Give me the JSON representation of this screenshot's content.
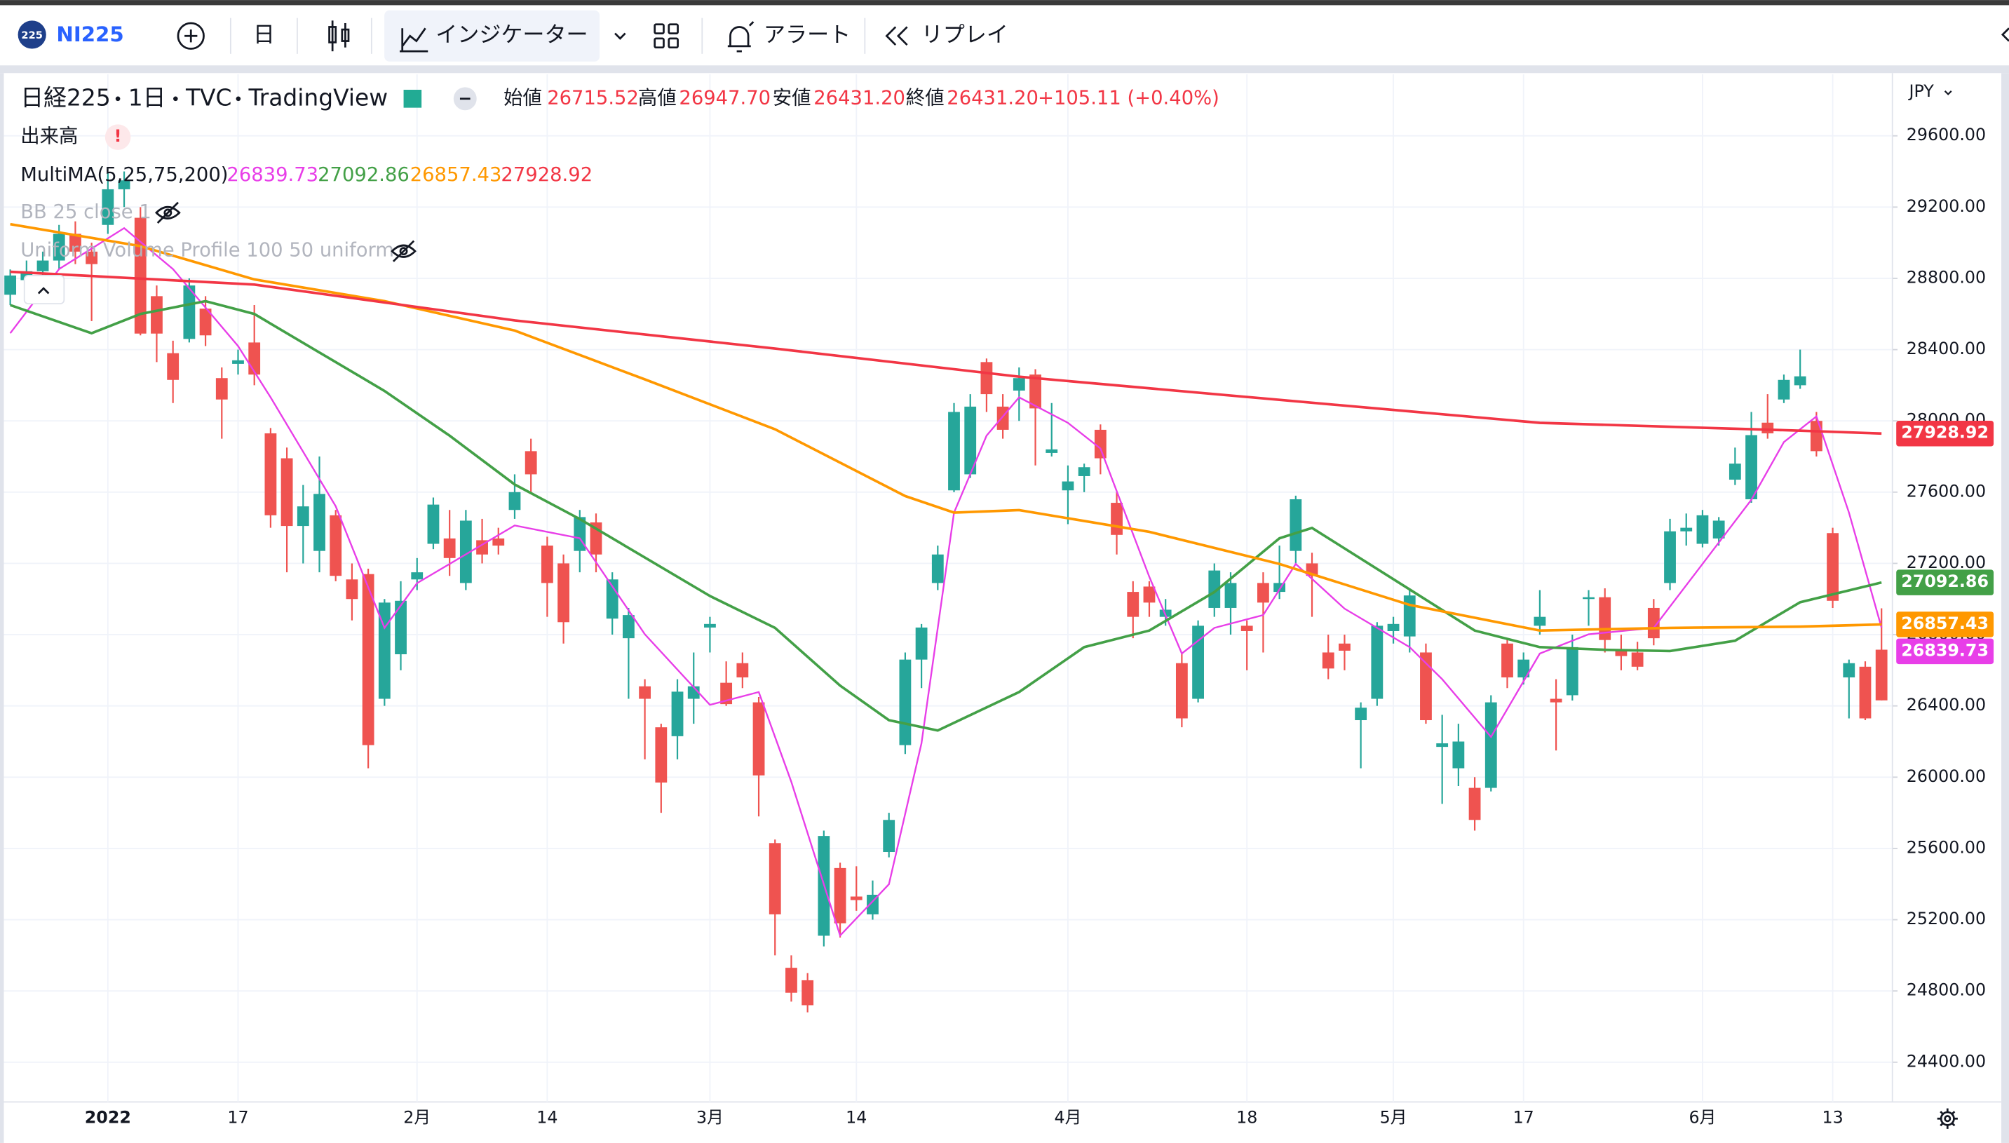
{
  "toolbar": {
    "symbol_badge": "225",
    "symbol": "NI225",
    "interval": "日",
    "indicators": "インジケーター",
    "alert": "アラート",
    "replay": "リプレイ"
  },
  "legend": {
    "title": "日経225",
    "interval": "1日",
    "source": "TVC",
    "vendor": "TradingView",
    "ohlc": [
      {
        "name": "始値",
        "value": "26715.52"
      },
      {
        "name": "高値",
        "value": "26947.70"
      },
      {
        "name": "安値",
        "value": "26431.20"
      },
      {
        "name": "終値",
        "value": "26431.20"
      }
    ],
    "change": "+105.11 (+0.40%)",
    "volume": "出来高",
    "multima": "MultiMA(5,25,75,200)",
    "bb": "BB 25 close 1",
    "vp": "Uniform Volume Profile 100 50 uniform"
  },
  "currency": "JPY",
  "chart_data": {
    "type": "candlestick",
    "categories": [
      null,
      null,
      null,
      null,
      null,
      null,
      "2022",
      null,
      null,
      null,
      null,
      null,
      null,
      null,
      "17",
      null,
      null,
      null,
      null,
      null,
      null,
      null,
      null,
      null,
      null,
      "2月",
      null,
      null,
      null,
      null,
      null,
      null,
      null,
      "14",
      null,
      null,
      null,
      null,
      null,
      null,
      null,
      null,
      null,
      "3月",
      null,
      null,
      null,
      null,
      null,
      null,
      null,
      null,
      "14",
      null,
      null,
      null,
      null,
      null,
      null,
      null,
      null,
      null,
      null,
      null,
      null,
      "4月",
      null,
      null,
      null,
      null,
      null,
      null,
      null,
      null,
      null,
      null,
      "18",
      null,
      null,
      null,
      null,
      null,
      null,
      null,
      null,
      "5月",
      null,
      null,
      null,
      null,
      null,
      null,
      null,
      "17",
      null,
      null,
      null,
      null,
      null,
      null,
      null,
      null,
      null,
      null,
      "6月",
      null,
      null,
      null,
      null,
      null,
      null,
      null,
      "13",
      null,
      null,
      null
    ],
    "open": [
      28708,
      28790,
      28840,
      28900,
      29050,
      28950,
      29100,
      29300,
      29140,
      28700,
      28380,
      28460,
      28630,
      28240,
      28320,
      28440,
      27930,
      27790,
      27410,
      27270,
      27470,
      27110,
      27140,
      26440,
      26690,
      27110,
      27310,
      27340,
      27090,
      27330,
      27340,
      27500,
      27830,
      27300,
      27200,
      27270,
      27430,
      26890,
      26780,
      26510,
      26280,
      26230,
      26440,
      26840,
      26530,
      26640,
      26420,
      25630,
      24930,
      24860,
      25110,
      25490,
      25330,
      25230,
      25580,
      26180,
      26660,
      27090,
      27610,
      27700,
      28330,
      28080,
      28170,
      28260,
      27820,
      27610,
      27690,
      27950,
      27540,
      27040,
      27070,
      26900,
      26640,
      26440,
      26950,
      26950,
      26850,
      27090,
      27040,
      27270,
      27200,
      26700,
      26750,
      26320,
      26440,
      26820,
      26790,
      26700,
      26170,
      26050,
      25940,
      25940,
      26750,
      26560,
      26850,
      26440,
      26460,
      27000,
      27010,
      26710,
      26700,
      26950,
      27090,
      27380,
      27310,
      27340,
      27670,
      27560,
      27990,
      28120,
      28200,
      28000,
      27370,
      26560,
      26620,
      26715.52
    ],
    "high": [
      28850,
      28900,
      28950,
      29100,
      29120,
      29000,
      29390,
      29400,
      29200,
      28760,
      28450,
      28800,
      28700,
      28300,
      28400,
      28650,
      27960,
      27850,
      27640,
      27800,
      27500,
      27200,
      27170,
      27000,
      27100,
      27230,
      27570,
      27500,
      27500,
      27450,
      27400,
      27700,
      27900,
      27350,
      27250,
      27500,
      27480,
      27150,
      26950,
      26550,
      26300,
      26550,
      26700,
      26900,
      26650,
      26700,
      26450,
      25650,
      25000,
      24900,
      25700,
      25520,
      25500,
      25420,
      25800,
      26700,
      26860,
      27300,
      28100,
      28150,
      28350,
      28150,
      28300,
      28290,
      28100,
      27750,
      27760,
      27980,
      27600,
      27100,
      27100,
      27000,
      26700,
      26880,
      27200,
      27150,
      26880,
      27150,
      27300,
      27580,
      27260,
      26800,
      26800,
      26420,
      26870,
      26900,
      27050,
      26750,
      26350,
      26300,
      26000,
      26460,
      26780,
      26700,
      27050,
      26550,
      26800,
      27050,
      27060,
      26800,
      26760,
      27000,
      27450,
      27480,
      27500,
      27460,
      27850,
      28050,
      28150,
      28260,
      28400,
      28050,
      27400,
      26660,
      26650,
      26947.7
    ],
    "low": [
      28650,
      28720,
      28780,
      28850,
      28880,
      28560,
      29050,
      29200,
      28480,
      28330,
      28100,
      28440,
      28420,
      27900,
      28260,
      28200,
      27400,
      27150,
      27200,
      27150,
      27100,
      26880,
      26050,
      26400,
      26600,
      27050,
      27280,
      27130,
      27050,
      27200,
      27250,
      27450,
      27600,
      26900,
      26750,
      27150,
      27150,
      26800,
      26440,
      26100,
      25800,
      26100,
      26300,
      26700,
      26400,
      26500,
      25780,
      25000,
      24740,
      24680,
      25050,
      25100,
      25250,
      25200,
      25550,
      26130,
      26500,
      27050,
      27600,
      27680,
      28050,
      27900,
      28000,
      27750,
      27800,
      27420,
      27600,
      27700,
      27250,
      26780,
      26900,
      26850,
      26280,
      26420,
      26900,
      26800,
      26600,
      26700,
      27000,
      27200,
      26900,
      26550,
      26600,
      26050,
      26400,
      26750,
      26700,
      26300,
      25850,
      25950,
      25700,
      25920,
      26500,
      26520,
      26800,
      26150,
      26430,
      26850,
      26700,
      26600,
      26600,
      26740,
      27050,
      27300,
      27290,
      27300,
      27640,
      27540,
      27900,
      28100,
      28180,
      27800,
      26950,
      26330,
      26320,
      26431.2
    ],
    "close": [
      28816,
      28840,
      28900,
      29050,
      28950,
      28880,
      29300,
      29350,
      28490,
      28490,
      28230,
      28760,
      28480,
      28120,
      28340,
      28260,
      27470,
      27410,
      27520,
      27590,
      27130,
      27000,
      26180,
      26980,
      26990,
      27150,
      27530,
      27230,
      27440,
      27250,
      27300,
      27600,
      27700,
      27090,
      26870,
      27460,
      27250,
      27110,
      26910,
      26440,
      25970,
      26480,
      26510,
      26860,
      26410,
      26560,
      26010,
      25230,
      24790,
      24720,
      25670,
      25180,
      25310,
      25340,
      25760,
      26660,
      26840,
      27250,
      28050,
      28080,
      28150,
      27950,
      28240,
      28070,
      27840,
      27660,
      27740,
      27790,
      27360,
      26900,
      26980,
      26940,
      26330,
      26850,
      27160,
      27090,
      26820,
      26980,
      27090,
      27560,
      27130,
      26610,
      26710,
      26390,
      26850,
      26860,
      27020,
      26320,
      26190,
      26200,
      25760,
      26420,
      26560,
      26660,
      26900,
      26420,
      26730,
      27010,
      26770,
      26680,
      26620,
      26780,
      27380,
      27400,
      27470,
      27440,
      27760,
      27920,
      27930,
      28230,
      28250,
      27830,
      26990,
      26640,
      26330,
      26431.2
    ],
    "up_color": "#26a69a",
    "down_color": "#ef5350",
    "series": [
      {
        "color": "#e83ee8",
        "x": [
          0,
          3,
          7,
          10,
          14,
          16,
          20,
          23,
          25,
          31,
          35,
          39,
          43,
          46,
          48,
          51,
          54,
          56,
          58,
          60,
          62,
          65,
          67,
          70,
          72,
          74,
          77,
          79,
          82,
          86,
          88,
          91,
          94,
          97,
          101,
          104,
          107,
          109,
          111,
          113,
          115
        ],
        "values": [
          28492,
          28852,
          29082,
          28852,
          28420,
          28132,
          27521,
          26838,
          27089,
          27413,
          27341,
          26802,
          26406,
          26478,
          25974,
          25111,
          25399,
          26190,
          27485,
          27917,
          28132,
          27989,
          27845,
          27125,
          26694,
          26838,
          26910,
          27197,
          26946,
          26730,
          26550,
          26226,
          26694,
          26802,
          26838,
          27197,
          27557,
          27881,
          28025,
          27485,
          26839.73
        ]
      },
      {
        "color": "#43a047",
        "x": [
          0,
          5,
          8,
          12,
          15,
          19,
          23,
          27,
          31,
          35,
          39,
          43,
          47,
          51,
          54,
          57,
          62,
          66,
          70,
          74,
          78,
          80,
          86,
          90,
          94,
          98,
          102,
          106,
          110,
          115
        ],
        "values": [
          28650,
          28492,
          28600,
          28672,
          28600,
          28384,
          28168,
          27917,
          27643,
          27449,
          27233,
          27017,
          26838,
          26514,
          26320,
          26262,
          26478,
          26730,
          26823,
          27039,
          27341,
          27399,
          27054,
          26823,
          26730,
          26715,
          26708,
          26766,
          26982,
          27092.86
        ]
      },
      {
        "color": "#ff9800",
        "x": [
          0,
          8,
          15,
          23,
          31,
          39,
          47,
          55,
          58,
          62,
          70,
          78,
          86,
          94,
          102,
          110,
          115
        ],
        "values": [
          29104,
          28981,
          28794,
          28672,
          28507,
          28233,
          27953,
          27578,
          27485,
          27499,
          27377,
          27197,
          26967,
          26823,
          26838,
          26845,
          26857.43
        ]
      },
      {
        "color": "#f23645",
        "x": [
          0,
          15,
          31,
          47,
          62,
          78,
          94,
          110,
          115
        ],
        "values": [
          28837,
          28765,
          28564,
          28406,
          28248,
          28118,
          27989,
          27945,
          27928.92
        ]
      }
    ],
    "ylim": [
      24177,
      29945
    ],
    "yticks": [
      {
        "value": 24400,
        "label": "24400.00"
      },
      {
        "value": 24800,
        "label": "24800.00"
      },
      {
        "value": 25200,
        "label": "25200.00"
      },
      {
        "value": 25600,
        "label": "25600.00"
      },
      {
        "value": 26000,
        "label": "26000.00"
      },
      {
        "value": 26400,
        "label": "26400.00"
      },
      {
        "value": 26800,
        "label": "26800.00"
      },
      {
        "value": 27200,
        "label": "27200.00"
      },
      {
        "value": 27600,
        "label": "27600.00"
      },
      {
        "value": 28000,
        "label": "28000.00"
      },
      {
        "value": 28400,
        "label": "28400.00"
      },
      {
        "value": 28800,
        "label": "28800.00"
      },
      {
        "value": 29200,
        "label": "29200.00"
      },
      {
        "value": 29600,
        "label": "29600.00"
      }
    ],
    "grid": true
  }
}
